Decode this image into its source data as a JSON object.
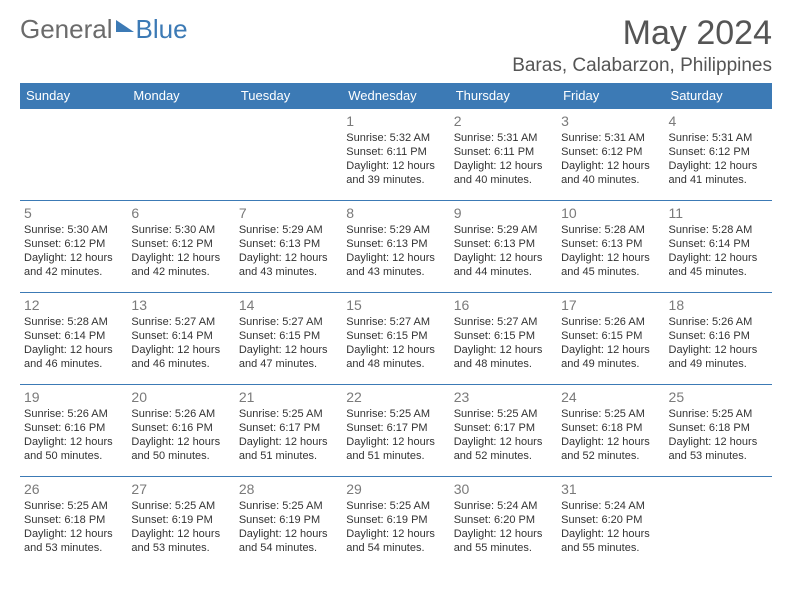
{
  "brand": {
    "word1": "General",
    "word2": "Blue"
  },
  "title": "May 2024",
  "location": "Baras, Calabarzon, Philippines",
  "colors": {
    "brand_blue": "#3c7ab5",
    "brand_gray": "#6b6b6b",
    "text_gray": "#555555",
    "cell_text": "#333333",
    "background": "#ffffff"
  },
  "dayHeaders": [
    "Sunday",
    "Monday",
    "Tuesday",
    "Wednesday",
    "Thursday",
    "Friday",
    "Saturday"
  ],
  "grid": {
    "rows": 5,
    "cols": 7,
    "firstDayCol": 3,
    "daysInMonth": 31
  },
  "days": {
    "1": {
      "sunrise": "5:32 AM",
      "sunset": "6:11 PM",
      "daylight": "12 hours and 39 minutes."
    },
    "2": {
      "sunrise": "5:31 AM",
      "sunset": "6:11 PM",
      "daylight": "12 hours and 40 minutes."
    },
    "3": {
      "sunrise": "5:31 AM",
      "sunset": "6:12 PM",
      "daylight": "12 hours and 40 minutes."
    },
    "4": {
      "sunrise": "5:31 AM",
      "sunset": "6:12 PM",
      "daylight": "12 hours and 41 minutes."
    },
    "5": {
      "sunrise": "5:30 AM",
      "sunset": "6:12 PM",
      "daylight": "12 hours and 42 minutes."
    },
    "6": {
      "sunrise": "5:30 AM",
      "sunset": "6:12 PM",
      "daylight": "12 hours and 42 minutes."
    },
    "7": {
      "sunrise": "5:29 AM",
      "sunset": "6:13 PM",
      "daylight": "12 hours and 43 minutes."
    },
    "8": {
      "sunrise": "5:29 AM",
      "sunset": "6:13 PM",
      "daylight": "12 hours and 43 minutes."
    },
    "9": {
      "sunrise": "5:29 AM",
      "sunset": "6:13 PM",
      "daylight": "12 hours and 44 minutes."
    },
    "10": {
      "sunrise": "5:28 AM",
      "sunset": "6:13 PM",
      "daylight": "12 hours and 45 minutes."
    },
    "11": {
      "sunrise": "5:28 AM",
      "sunset": "6:14 PM",
      "daylight": "12 hours and 45 minutes."
    },
    "12": {
      "sunrise": "5:28 AM",
      "sunset": "6:14 PM",
      "daylight": "12 hours and 46 minutes."
    },
    "13": {
      "sunrise": "5:27 AM",
      "sunset": "6:14 PM",
      "daylight": "12 hours and 46 minutes."
    },
    "14": {
      "sunrise": "5:27 AM",
      "sunset": "6:15 PM",
      "daylight": "12 hours and 47 minutes."
    },
    "15": {
      "sunrise": "5:27 AM",
      "sunset": "6:15 PM",
      "daylight": "12 hours and 48 minutes."
    },
    "16": {
      "sunrise": "5:27 AM",
      "sunset": "6:15 PM",
      "daylight": "12 hours and 48 minutes."
    },
    "17": {
      "sunrise": "5:26 AM",
      "sunset": "6:15 PM",
      "daylight": "12 hours and 49 minutes."
    },
    "18": {
      "sunrise": "5:26 AM",
      "sunset": "6:16 PM",
      "daylight": "12 hours and 49 minutes."
    },
    "19": {
      "sunrise": "5:26 AM",
      "sunset": "6:16 PM",
      "daylight": "12 hours and 50 minutes."
    },
    "20": {
      "sunrise": "5:26 AM",
      "sunset": "6:16 PM",
      "daylight": "12 hours and 50 minutes."
    },
    "21": {
      "sunrise": "5:25 AM",
      "sunset": "6:17 PM",
      "daylight": "12 hours and 51 minutes."
    },
    "22": {
      "sunrise": "5:25 AM",
      "sunset": "6:17 PM",
      "daylight": "12 hours and 51 minutes."
    },
    "23": {
      "sunrise": "5:25 AM",
      "sunset": "6:17 PM",
      "daylight": "12 hours and 52 minutes."
    },
    "24": {
      "sunrise": "5:25 AM",
      "sunset": "6:18 PM",
      "daylight": "12 hours and 52 minutes."
    },
    "25": {
      "sunrise": "5:25 AM",
      "sunset": "6:18 PM",
      "daylight": "12 hours and 53 minutes."
    },
    "26": {
      "sunrise": "5:25 AM",
      "sunset": "6:18 PM",
      "daylight": "12 hours and 53 minutes."
    },
    "27": {
      "sunrise": "5:25 AM",
      "sunset": "6:19 PM",
      "daylight": "12 hours and 53 minutes."
    },
    "28": {
      "sunrise": "5:25 AM",
      "sunset": "6:19 PM",
      "daylight": "12 hours and 54 minutes."
    },
    "29": {
      "sunrise": "5:25 AM",
      "sunset": "6:19 PM",
      "daylight": "12 hours and 54 minutes."
    },
    "30": {
      "sunrise": "5:24 AM",
      "sunset": "6:20 PM",
      "daylight": "12 hours and 55 minutes."
    },
    "31": {
      "sunrise": "5:24 AM",
      "sunset": "6:20 PM",
      "daylight": "12 hours and 55 minutes."
    }
  },
  "labels": {
    "sunrise": "Sunrise:",
    "sunset": "Sunset:",
    "daylight": "Daylight:"
  },
  "typography": {
    "title_fontsize": 34,
    "location_fontsize": 19,
    "header_fontsize": 13,
    "daynum_fontsize": 14,
    "cell_fontsize": 11
  }
}
